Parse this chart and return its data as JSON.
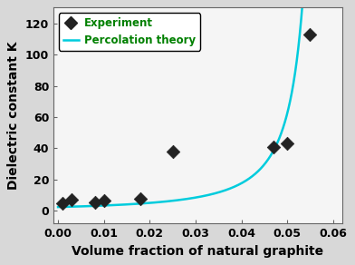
{
  "exp_x": [
    0.001,
    0.003,
    0.008,
    0.01,
    0.018,
    0.025,
    0.047,
    0.05,
    0.055
  ],
  "exp_y": [
    5.0,
    7.0,
    5.5,
    6.5,
    8.0,
    38.0,
    41.0,
    43.0,
    113.0
  ],
  "curve_x_start": 0.0,
  "curve_x_end": 0.0555,
  "percolation_A": 0.018,
  "percolation_fc": 0.0595,
  "percolation_t": 1.75,
  "xlabel": "Volume fraction of natural graphite",
  "ylabel": "Dielectric constant K",
  "xlim": [
    -0.001,
    0.062
  ],
  "ylim": [
    -8,
    130
  ],
  "xticks": [
    0.0,
    0.01,
    0.02,
    0.03,
    0.04,
    0.05,
    0.06
  ],
  "yticks": [
    0,
    20,
    40,
    60,
    80,
    100,
    120
  ],
  "legend_experiment": "Experiment",
  "legend_percolation": "Percolation theory",
  "curve_color": "#00CCDD",
  "marker_facecolor": "#222222",
  "marker_edgecolor": "#222222",
  "legend_text_color": "#008000",
  "bg_color": "#d8d8d8",
  "plot_bg_color": "#f5f5f5",
  "axis_label_fontsize": 10,
  "tick_fontsize": 9,
  "legend_fontsize": 8.5,
  "marker_size": 55,
  "linewidth": 1.8
}
